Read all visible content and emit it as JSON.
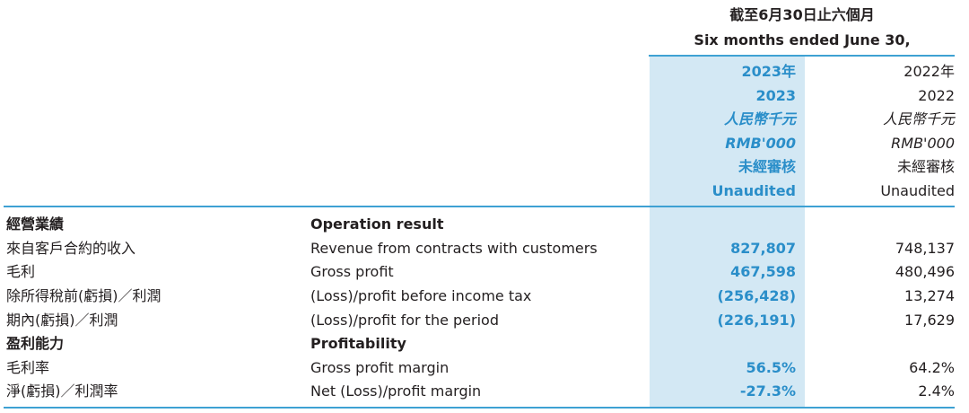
{
  "header": {
    "period_zh": "截至6月30日止六個月",
    "period_en": "Six months ended June 30,",
    "col_2023": {
      "year_zh": "2023年",
      "year": "2023",
      "currency_zh": "人民幣千元",
      "currency_en": "RMB'000",
      "audit_zh": "未經審核",
      "audit_en": "Unaudited"
    },
    "col_2022": {
      "year_zh": "2022年",
      "year": "2022",
      "currency_zh": "人民幣千元",
      "currency_en": "RMB'000",
      "audit_zh": "未經審核",
      "audit_en": "Unaudited"
    }
  },
  "rows": [
    {
      "zh": "經營業績",
      "en": "Operation result",
      "v2023": "",
      "v2022": ""
    },
    {
      "zh": "來自客戶合約的收入",
      "en": "Revenue from contracts with customers",
      "v2023": "827,807",
      "v2022": "748,137"
    },
    {
      "zh": "毛利",
      "en": "Gross profit",
      "v2023": "467,598",
      "v2022": "480,496"
    },
    {
      "zh": "除所得稅前(虧損)／利潤",
      "en": "(Loss)/profit before income tax",
      "v2023": "(256,428)",
      "v2022": "13,274"
    },
    {
      "zh": "期內(虧損)／利潤",
      "en": "(Loss)/profit for the period",
      "v2023": "(226,191)",
      "v2022": "17,629"
    },
    {
      "zh": "盈利能力",
      "en": "Profitability",
      "v2023": "",
      "v2022": ""
    },
    {
      "zh": "毛利率",
      "en": "Gross profit margin",
      "v2023": "56.5%",
      "v2022": "64.2%"
    },
    {
      "zh": "淨(虧損)／利潤率",
      "en": "Net (Loss)/profit margin",
      "v2023": "-27.3%",
      "v2022": "2.4%"
    }
  ],
  "colors": {
    "highlight_bg": "#d3e8f4",
    "accent_blue": "#2a8ec9",
    "rule_blue": "#3ea1d3"
  }
}
